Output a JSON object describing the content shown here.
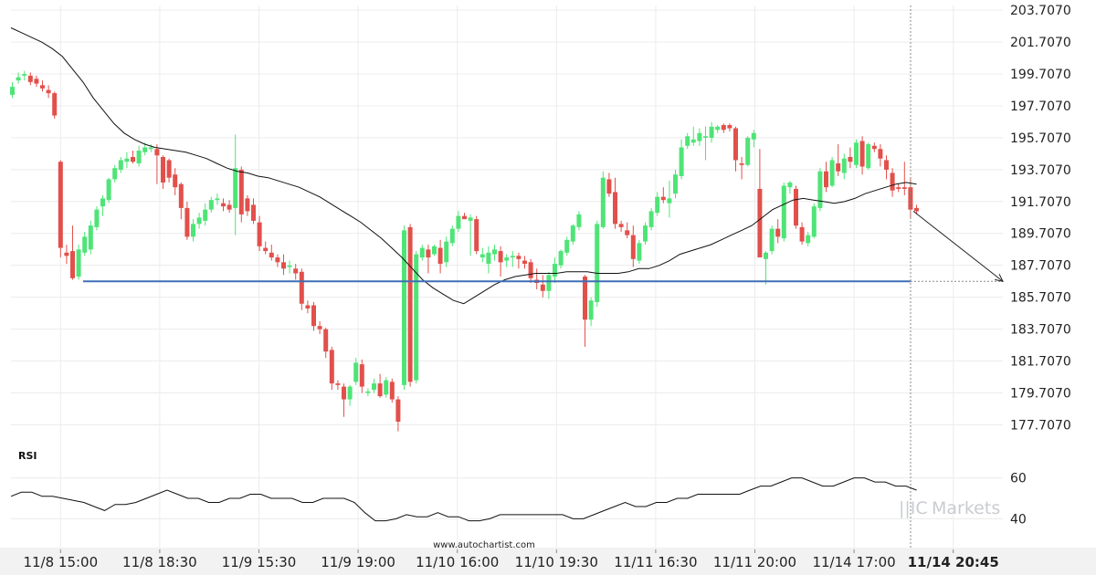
{
  "chart_data": {
    "type": "candlestick",
    "y_ticks": [
      "203.7070",
      "201.7070",
      "199.7070",
      "197.7070",
      "195.7070",
      "193.7070",
      "191.7070",
      "189.7070",
      "187.7070",
      "185.7070",
      "183.7070",
      "181.7070",
      "179.7070",
      "177.7070"
    ],
    "ylim": [
      176.3,
      204.0
    ],
    "x_ticks": [
      {
        "label": "11/8 15:00",
        "bold": false
      },
      {
        "label": "11/8 18:30",
        "bold": false
      },
      {
        "label": "11/9 15:30",
        "bold": false
      },
      {
        "label": "11/9 19:00",
        "bold": false
      },
      {
        "label": "11/10 16:00",
        "bold": false
      },
      {
        "label": "11/10 19:30",
        "bold": false
      },
      {
        "label": "11/11 16:30",
        "bold": false
      },
      {
        "label": "11/11 20:00",
        "bold": false
      },
      {
        "label": "11/14 17:00",
        "bold": false
      },
      {
        "label": "11/14 20:45",
        "bold": true
      }
    ],
    "support_level": 186.7,
    "projection": {
      "from": 191.1,
      "to": 186.7
    },
    "candles": [
      [
        198.4,
        199.2,
        198.2,
        198.9
      ],
      [
        199.3,
        199.8,
        199.1,
        199.5
      ],
      [
        199.6,
        199.9,
        199.3,
        199.7
      ],
      [
        199.6,
        199.8,
        199.0,
        199.2
      ],
      [
        199.4,
        199.6,
        198.9,
        199.1
      ],
      [
        199.0,
        199.3,
        198.6,
        198.8
      ],
      [
        198.7,
        199.0,
        198.2,
        198.5
      ],
      [
        198.5,
        198.6,
        196.9,
        197.1
      ],
      [
        194.2,
        194.3,
        188.2,
        188.8
      ],
      [
        188.5,
        189.0,
        187.8,
        188.3
      ],
      [
        188.6,
        190.2,
        186.8,
        186.9
      ],
      [
        187.0,
        189.0,
        186.8,
        188.7
      ],
      [
        188.5,
        189.8,
        188.3,
        189.5
      ],
      [
        188.7,
        190.5,
        188.4,
        190.2
      ],
      [
        190.1,
        191.4,
        189.9,
        191.2
      ],
      [
        191.4,
        192.1,
        190.8,
        191.9
      ],
      [
        191.8,
        193.2,
        191.6,
        193.1
      ],
      [
        193.1,
        194.0,
        192.9,
        193.8
      ],
      [
        193.7,
        194.5,
        193.5,
        194.3
      ],
      [
        194.2,
        194.8,
        193.8,
        194.4
      ],
      [
        194.5,
        194.9,
        194.1,
        194.2
      ],
      [
        194.1,
        195.2,
        193.9,
        194.9
      ],
      [
        194.8,
        195.4,
        194.6,
        195.1
      ],
      [
        195.0,
        195.3,
        194.8,
        195.1
      ],
      [
        195.0,
        195.3,
        192.8,
        194.6
      ],
      [
        194.5,
        194.6,
        192.5,
        192.9
      ],
      [
        194.3,
        194.4,
        192.9,
        193.2
      ],
      [
        193.4,
        193.8,
        192.1,
        192.6
      ],
      [
        192.8,
        192.9,
        190.6,
        191.3
      ],
      [
        191.3,
        191.7,
        189.3,
        189.5
      ],
      [
        189.5,
        190.6,
        189.2,
        190.3
      ],
      [
        190.3,
        191.0,
        190.0,
        190.7
      ],
      [
        190.5,
        191.6,
        190.2,
        191.2
      ],
      [
        191.2,
        192.0,
        191.0,
        191.8
      ],
      [
        191.8,
        192.2,
        191.5,
        191.9
      ],
      [
        191.6,
        191.9,
        191.1,
        191.4
      ],
      [
        191.5,
        191.8,
        191.0,
        191.2
      ],
      [
        191.3,
        195.9,
        189.6,
        193.8
      ],
      [
        193.7,
        193.9,
        190.4,
        190.9
      ],
      [
        191.9,
        192.1,
        190.8,
        191.1
      ],
      [
        191.5,
        191.9,
        190.3,
        190.5
      ],
      [
        190.4,
        190.8,
        188.6,
        188.9
      ],
      [
        188.8,
        189.2,
        188.4,
        188.6
      ],
      [
        188.5,
        189.0,
        188.0,
        188.2
      ],
      [
        188.2,
        188.4,
        187.6,
        187.9
      ],
      [
        187.9,
        188.4,
        187.1,
        187.5
      ],
      [
        187.6,
        188.0,
        187.2,
        187.7
      ],
      [
        187.5,
        187.8,
        186.8,
        187.2
      ],
      [
        187.3,
        187.5,
        184.9,
        185.3
      ],
      [
        185.2,
        185.5,
        184.7,
        185.0
      ],
      [
        185.2,
        185.4,
        183.6,
        183.9
      ],
      [
        183.9,
        184.2,
        183.4,
        183.7
      ],
      [
        183.7,
        183.8,
        181.9,
        182.3
      ],
      [
        182.4,
        182.6,
        179.9,
        180.3
      ],
      [
        180.3,
        180.5,
        179.9,
        180.2
      ],
      [
        180.1,
        180.3,
        178.2,
        179.3
      ],
      [
        179.3,
        180.2,
        178.9,
        180.1
      ],
      [
        180.4,
        181.9,
        180.2,
        181.6
      ],
      [
        181.5,
        181.8,
        179.7,
        180.1
      ],
      [
        179.7,
        180.0,
        179.5,
        179.8
      ],
      [
        179.9,
        180.6,
        179.7,
        180.3
      ],
      [
        180.3,
        180.9,
        179.4,
        179.5
      ],
      [
        179.6,
        180.7,
        179.4,
        180.5
      ],
      [
        180.4,
        180.6,
        179.1,
        179.3
      ],
      [
        179.3,
        179.5,
        177.3,
        177.9
      ],
      [
        180.2,
        190.2,
        179.9,
        189.9
      ],
      [
        190.1,
        190.3,
        180.1,
        180.4
      ],
      [
        180.5,
        188.6,
        180.3,
        188.4
      ],
      [
        188.2,
        189.0,
        188.0,
        188.8
      ],
      [
        188.7,
        189.0,
        187.2,
        188.2
      ],
      [
        188.4,
        189.0,
        188.3,
        188.9
      ],
      [
        188.8,
        189.3,
        187.2,
        187.8
      ],
      [
        187.9,
        189.5,
        187.6,
        189.2
      ],
      [
        189.1,
        190.2,
        188.9,
        190.0
      ],
      [
        190.0,
        191.1,
        189.8,
        190.8
      ],
      [
        190.8,
        191.0,
        190.6,
        190.6
      ],
      [
        190.5,
        190.9,
        188.3,
        190.7
      ],
      [
        190.6,
        190.8,
        188.4,
        188.6
      ],
      [
        188.2,
        188.8,
        187.9,
        188.4
      ],
      [
        187.8,
        188.9,
        187.2,
        188.5
      ],
      [
        188.4,
        189.0,
        188.0,
        188.7
      ],
      [
        188.6,
        188.9,
        187.0,
        187.9
      ],
      [
        188.0,
        188.4,
        187.6,
        188.2
      ],
      [
        188.2,
        188.6,
        187.6,
        188.3
      ],
      [
        188.3,
        188.5,
        187.5,
        188.1
      ],
      [
        188.0,
        188.3,
        187.5,
        187.8
      ],
      [
        187.9,
        188.1,
        186.6,
        186.9
      ],
      [
        186.8,
        187.5,
        186.2,
        186.6
      ],
      [
        186.5,
        187.1,
        185.7,
        186.1
      ],
      [
        186.1,
        187.3,
        185.6,
        187.1
      ],
      [
        187.0,
        188.2,
        186.6,
        187.8
      ],
      [
        187.7,
        188.7,
        187.5,
        188.6
      ],
      [
        188.5,
        189.5,
        188.3,
        189.3
      ],
      [
        189.2,
        190.3,
        189.0,
        190.2
      ],
      [
        190.1,
        191.1,
        189.9,
        190.9
      ],
      [
        187.0,
        187.1,
        182.6,
        184.3
      ],
      [
        184.3,
        185.7,
        183.9,
        185.5
      ],
      [
        185.4,
        190.5,
        185.1,
        190.3
      ],
      [
        190.1,
        193.6,
        190.0,
        193.2
      ],
      [
        193.1,
        193.5,
        192.0,
        192.2
      ],
      [
        192.3,
        193.2,
        190.0,
        190.3
      ],
      [
        190.3,
        190.5,
        189.8,
        190.1
      ],
      [
        189.9,
        190.4,
        189.4,
        189.6
      ],
      [
        189.6,
        190.2,
        187.6,
        188.1
      ],
      [
        188.0,
        189.3,
        187.8,
        189.1
      ],
      [
        189.2,
        190.4,
        189.0,
        190.2
      ],
      [
        190.1,
        191.3,
        189.9,
        191.1
      ],
      [
        191.0,
        192.3,
        190.8,
        192.0
      ],
      [
        192.0,
        192.6,
        191.6,
        191.8
      ],
      [
        191.6,
        193.0,
        190.7,
        191.9
      ],
      [
        192.2,
        193.7,
        191.9,
        193.4
      ],
      [
        193.3,
        195.6,
        193.1,
        195.1
      ],
      [
        195.2,
        196.0,
        195.0,
        195.8
      ],
      [
        195.4,
        196.4,
        195.2,
        195.6
      ],
      [
        195.5,
        196.3,
        195.2,
        196.0
      ],
      [
        195.7,
        196.4,
        194.3,
        195.8
      ],
      [
        195.7,
        196.7,
        195.4,
        196.4
      ],
      [
        196.2,
        196.5,
        196.0,
        196.4
      ],
      [
        196.5,
        196.6,
        196.0,
        196.2
      ],
      [
        196.5,
        196.6,
        196.1,
        196.3
      ],
      [
        196.3,
        196.4,
        193.6,
        194.3
      ],
      [
        194.1,
        194.5,
        193.1,
        194.0
      ],
      [
        194.0,
        195.8,
        193.9,
        195.7
      ],
      [
        195.6,
        196.2,
        195.1,
        196.0
      ],
      [
        192.5,
        195.0,
        188.3,
        188.2
      ],
      [
        188.1,
        188.6,
        186.5,
        188.5
      ],
      [
        188.6,
        190.2,
        188.4,
        190.0
      ],
      [
        190.0,
        190.6,
        189.1,
        189.5
      ],
      [
        189.4,
        192.9,
        189.2,
        192.7
      ],
      [
        192.6,
        193.0,
        192.2,
        192.9
      ],
      [
        192.5,
        192.7,
        190.0,
        190.2
      ],
      [
        190.1,
        190.4,
        189.0,
        189.2
      ],
      [
        189.1,
        189.8,
        188.9,
        189.6
      ],
      [
        189.5,
        191.6,
        189.4,
        191.4
      ],
      [
        191.3,
        193.8,
        191.1,
        193.6
      ],
      [
        193.6,
        194.2,
        192.3,
        192.6
      ],
      [
        192.7,
        194.5,
        192.6,
        194.3
      ],
      [
        194.1,
        195.3,
        193.3,
        193.6
      ],
      [
        193.5,
        194.7,
        193.1,
        194.4
      ],
      [
        194.5,
        195.1,
        193.8,
        194.2
      ],
      [
        194.0,
        195.6,
        193.8,
        195.4
      ],
      [
        195.5,
        195.8,
        193.4,
        193.9
      ],
      [
        193.8,
        195.4,
        193.7,
        195.3
      ],
      [
        195.2,
        195.4,
        194.8,
        195.0
      ],
      [
        195.0,
        195.3,
        193.9,
        194.4
      ],
      [
        194.3,
        194.6,
        193.1,
        193.7
      ],
      [
        193.5,
        193.8,
        192.0,
        192.4
      ],
      [
        192.6,
        192.8,
        192.3,
        192.5
      ],
      [
        192.6,
        194.2,
        192.1,
        192.5
      ],
      [
        192.6,
        193.2,
        190.7,
        191.2
      ],
      [
        191.3,
        191.5,
        190.9,
        191.1
      ]
    ],
    "moving_average": [
      202.6,
      202.3,
      202.0,
      201.7,
      201.3,
      200.8,
      200.0,
      199.2,
      198.2,
      197.4,
      196.6,
      196.0,
      195.6,
      195.3,
      195.1,
      195.0,
      194.9,
      194.8,
      194.6,
      194.4,
      194.1,
      193.8,
      193.6,
      193.5,
      193.3,
      193.2,
      193.0,
      192.8,
      192.6,
      192.3,
      192.0,
      191.6,
      191.2,
      190.8,
      190.4,
      189.9,
      189.4,
      188.8,
      188.2,
      187.5,
      186.8,
      186.3,
      185.9,
      185.5,
      185.3,
      185.7,
      186.1,
      186.5,
      186.8,
      187.0,
      187.1,
      187.2,
      187.2,
      187.2,
      187.3,
      187.3,
      187.3,
      187.2,
      187.2,
      187.2,
      187.3,
      187.5,
      187.5,
      187.7,
      188.0,
      188.4,
      188.6,
      188.8,
      189.0,
      189.3,
      189.6,
      189.9,
      190.2,
      190.7,
      191.2,
      191.5,
      191.8,
      191.9,
      191.8,
      191.7,
      191.6,
      191.7,
      191.9,
      192.2,
      192.4,
      192.6,
      192.8,
      192.9,
      192.8
    ],
    "moving_average_start": 192.7,
    "rsi": {
      "label": "RSI",
      "ticks": [
        "60",
        "40"
      ],
      "ylim": [
        25,
        75
      ],
      "values": [
        51,
        53,
        53,
        51,
        51,
        50,
        49,
        48,
        46,
        44,
        47,
        47,
        48,
        50,
        52,
        54,
        52,
        50,
        50,
        48,
        48,
        50,
        50,
        52,
        52,
        50,
        50,
        50,
        48,
        48,
        50,
        50,
        50,
        48,
        43,
        39,
        39,
        40,
        42,
        41,
        41,
        43,
        41,
        41,
        39,
        39,
        40,
        42,
        42,
        42,
        42,
        42,
        42,
        42,
        40,
        40,
        42,
        44,
        46,
        48,
        46,
        46,
        48,
        48,
        50,
        50,
        52,
        52,
        52,
        52,
        52,
        54,
        56,
        56,
        58,
        60,
        60,
        58,
        56,
        56,
        58,
        60,
        60,
        58,
        58,
        56,
        56,
        54
      ]
    }
  },
  "watermark": {
    "url": "www.autochartist.com",
    "brand_prefix": "||IC",
    "brand_name": "Markets"
  }
}
